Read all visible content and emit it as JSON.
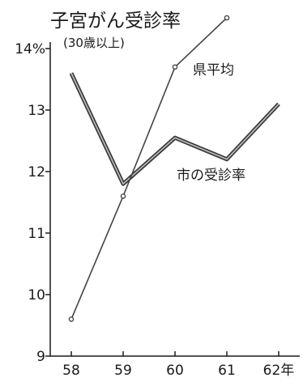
{
  "chart_data": {
    "type": "line",
    "title": "子宮がん受診率",
    "subtitle": "(30歳以上)",
    "x": [
      "58",
      "59",
      "60",
      "61",
      "62年"
    ],
    "y_ticks": [
      "9",
      "10",
      "11",
      "12",
      "13",
      "14%"
    ],
    "ylim": [
      9,
      14
    ],
    "grid": false,
    "series": [
      {
        "name": "県平均",
        "values": [
          9.6,
          11.6,
          13.7,
          14.5,
          null
        ],
        "style": "thin",
        "markers": true
      },
      {
        "name": "市の受診率",
        "values": [
          13.6,
          11.8,
          12.55,
          12.2,
          13.1
        ],
        "style": "thick",
        "markers": false
      }
    ],
    "colors": {
      "ink": "#1a1a1a",
      "thin_line": "#444444",
      "thick_line": "#3a3a3a"
    }
  }
}
